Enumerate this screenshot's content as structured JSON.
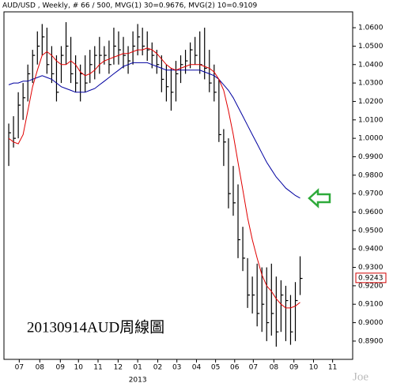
{
  "chart_data": {
    "type": "ohlc",
    "title": "AUD/USD , Weekly, # 66 / 500,",
    "annotation": "20130914AUD周線圖",
    "watermark": "Joe",
    "year_label": "2013",
    "x": [
      1,
      2,
      3,
      4,
      5,
      6,
      7,
      8,
      9,
      10,
      11,
      12,
      13,
      14,
      15,
      16,
      17,
      18,
      19,
      20,
      21,
      22,
      23,
      24,
      25,
      26,
      27,
      28,
      29,
      30,
      31,
      32,
      33,
      34,
      35,
      36,
      37,
      38,
      39,
      40,
      41,
      42,
      43,
      44,
      45,
      46,
      47,
      48,
      49,
      50,
      51,
      52,
      53,
      54,
      55,
      56,
      57,
      58,
      59,
      60,
      61,
      62
    ],
    "xlim": [
      0,
      73
    ],
    "xticks": [
      {
        "value": 3.2,
        "label": "07"
      },
      {
        "value": 7.5,
        "label": "08"
      },
      {
        "value": 11.8,
        "label": "09"
      },
      {
        "value": 15.6,
        "label": "10"
      },
      {
        "value": 19.7,
        "label": "11"
      },
      {
        "value": 23.9,
        "label": "12"
      },
      {
        "value": 28,
        "label": "01"
      },
      {
        "value": 32.2,
        "label": "02"
      },
      {
        "value": 36.2,
        "label": "03"
      },
      {
        "value": 40.3,
        "label": "04"
      },
      {
        "value": 44.3,
        "label": "05"
      },
      {
        "value": 48.3,
        "label": "06"
      },
      {
        "value": 52.2,
        "label": "07"
      },
      {
        "value": 56.5,
        "label": "08"
      },
      {
        "value": 60.7,
        "label": "09"
      },
      {
        "value": 64.8,
        "label": "10"
      },
      {
        "value": 68.8,
        "label": "11"
      }
    ],
    "ylim": [
      0.8801,
      1.0686
    ],
    "yticks": [
      {
        "value": 0.89,
        "label": "0.8900"
      },
      {
        "value": 0.9,
        "label": "0.9000"
      },
      {
        "value": 0.91,
        "label": "0.9100"
      },
      {
        "value": 0.92,
        "label": "0.9200"
      },
      {
        "value": 0.93,
        "label": "0.9300"
      },
      {
        "value": 0.94,
        "label": "0.9400"
      },
      {
        "value": 0.95,
        "label": "0.9500"
      },
      {
        "value": 0.96,
        "label": "0.9600"
      },
      {
        "value": 0.97,
        "label": "0.9700"
      },
      {
        "value": 0.98,
        "label": "0.9800"
      },
      {
        "value": 0.99,
        "label": "0.9900"
      },
      {
        "value": 1.0,
        "label": "1.0000"
      },
      {
        "value": 1.01,
        "label": "1.0100"
      },
      {
        "value": 1.02,
        "label": "1.0200"
      },
      {
        "value": 1.03,
        "label": "1.0300"
      },
      {
        "value": 1.04,
        "label": "1.0400"
      },
      {
        "value": 1.05,
        "label": "1.0500"
      },
      {
        "value": 1.06,
        "label": "1.0600"
      }
    ],
    "last_price": {
      "value": 0.9243,
      "label": "0.9243",
      "color": "#d00000"
    },
    "bar_color": "#000000",
    "high": [
      1.008,
      1.012,
      1.025,
      1.03,
      1.04,
      1.048,
      1.058,
      1.062,
      1.06,
      1.05,
      1.045,
      1.05,
      1.063,
      1.055,
      1.045,
      1.04,
      1.045,
      1.048,
      1.05,
      1.055,
      1.05,
      1.053,
      1.06,
      1.058,
      1.055,
      1.05,
      1.058,
      1.062,
      1.06,
      1.058,
      1.052,
      1.048,
      1.045,
      1.04,
      1.038,
      1.042,
      1.045,
      1.048,
      1.052,
      1.055,
      1.058,
      1.06,
      1.048,
      1.04,
      1.032,
      1.005,
      1.0,
      0.985,
      0.975,
      0.952,
      0.935,
      0.925,
      0.932,
      0.93,
      0.93,
      0.932,
      0.925,
      0.923,
      0.92,
      0.915,
      0.922,
      0.936
    ],
    "low": [
      0.985,
      0.995,
      1.0,
      1.01,
      1.02,
      1.03,
      1.04,
      1.045,
      1.035,
      1.03,
      1.02,
      1.03,
      1.04,
      1.03,
      1.025,
      1.02,
      1.025,
      1.03,
      1.032,
      1.035,
      1.04,
      1.035,
      1.04,
      1.04,
      1.038,
      1.035,
      1.04,
      1.045,
      1.045,
      1.042,
      1.038,
      1.035,
      1.025,
      1.02,
      1.015,
      1.02,
      1.03,
      1.035,
      1.038,
      1.04,
      1.035,
      1.032,
      1.025,
      1.02,
      0.998,
      0.985,
      0.962,
      0.958,
      0.935,
      0.928,
      0.908,
      0.905,
      0.898,
      0.895,
      0.89,
      0.893,
      0.887,
      0.895,
      0.89,
      0.888,
      0.89,
      0.915
    ],
    "close": [
      1.003,
      1.0,
      1.018,
      1.022,
      1.035,
      1.045,
      1.05,
      1.055,
      1.04,
      1.035,
      1.025,
      1.045,
      1.05,
      1.035,
      1.03,
      1.035,
      1.03,
      1.04,
      1.045,
      1.045,
      1.045,
      1.04,
      1.05,
      1.048,
      1.045,
      1.042,
      1.05,
      1.055,
      1.05,
      1.048,
      1.045,
      1.04,
      1.032,
      1.028,
      1.025,
      1.035,
      1.04,
      1.042,
      1.048,
      1.045,
      1.04,
      1.038,
      1.03,
      1.025,
      1.002,
      0.998,
      0.97,
      0.965,
      0.945,
      0.935,
      0.915,
      0.915,
      0.905,
      0.91,
      0.9,
      0.905,
      0.895,
      0.915,
      0.912,
      0.895,
      0.912,
      0.924
    ],
    "series": [
      {
        "name": "MVG(1) 30=0.9676,",
        "color": "#0000a0",
        "values": [
          1.029,
          1.03,
          1.03,
          1.031,
          1.031,
          1.032,
          1.033,
          1.034,
          1.033,
          1.032,
          1.03,
          1.028,
          1.027,
          1.026,
          1.025,
          1.025,
          1.025,
          1.026,
          1.027,
          1.029,
          1.031,
          1.033,
          1.035,
          1.037,
          1.039,
          1.04,
          1.041,
          1.041,
          1.041,
          1.041,
          1.04,
          1.039,
          1.038,
          1.037,
          1.037,
          1.037,
          1.037,
          1.037,
          1.037,
          1.037,
          1.037,
          1.036,
          1.035,
          1.034,
          1.032,
          1.029,
          1.026,
          1.022,
          1.017,
          1.012,
          1.007,
          1.002,
          0.997,
          0.992,
          0.987,
          0.983,
          0.979,
          0.976,
          0.973,
          0.971,
          0.969,
          0.9676
        ]
      },
      {
        "name": "MVG(2) 10=0.9109",
        "color": "#e00000",
        "values": [
          1.0,
          0.998,
          0.997,
          1.002,
          1.015,
          1.028,
          1.037,
          1.045,
          1.047,
          1.045,
          1.042,
          1.04,
          1.04,
          1.042,
          1.04,
          1.036,
          1.034,
          1.035,
          1.037,
          1.04,
          1.042,
          1.043,
          1.044,
          1.045,
          1.046,
          1.046,
          1.047,
          1.048,
          1.048,
          1.049,
          1.048,
          1.046,
          1.043,
          1.04,
          1.038,
          1.037,
          1.038,
          1.039,
          1.04,
          1.04,
          1.04,
          1.039,
          1.038,
          1.036,
          1.032,
          1.026,
          1.015,
          1.002,
          0.987,
          0.972,
          0.957,
          0.945,
          0.935,
          0.926,
          0.92,
          0.917,
          0.913,
          0.91,
          0.908,
          0.908,
          0.909,
          0.911
        ]
      }
    ]
  }
}
